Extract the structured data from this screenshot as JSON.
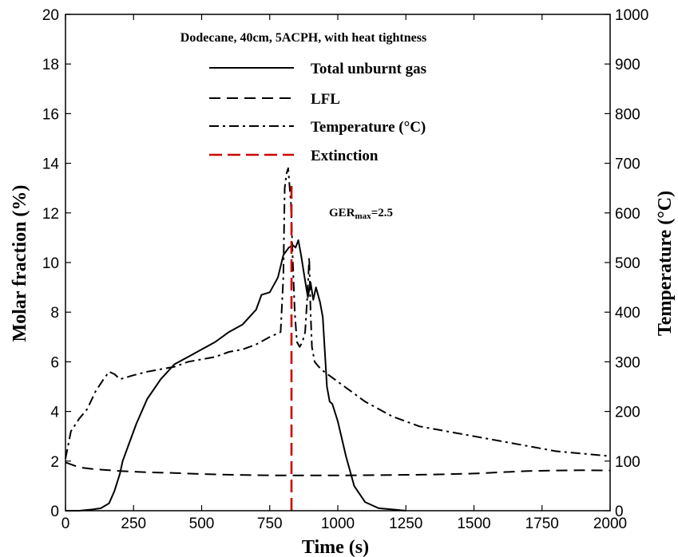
{
  "chart_data": {
    "type": "line",
    "title": "Dodecane, 40cm, 5ACPH, with heat tightness",
    "xlabel": "Time (s)",
    "ylabel": "Molar fraction (%)",
    "y2label": "Temperature (°C)",
    "xlim": [
      0,
      2000
    ],
    "ylim": [
      0,
      20
    ],
    "y2lim": [
      0,
      1000
    ],
    "xticks": [
      "0",
      "250",
      "500",
      "750",
      "1000",
      "1250",
      "1500",
      "1750",
      "2000"
    ],
    "yticks": [
      "0",
      "2",
      "4",
      "6",
      "8",
      "10",
      "12",
      "14",
      "16",
      "18",
      "20"
    ],
    "y2ticks": [
      "0",
      "100",
      "200",
      "300",
      "400",
      "500",
      "600",
      "700",
      "800",
      "900",
      "1000"
    ],
    "grid": false,
    "legend_position": "top-center",
    "annotation": {
      "base": "GER",
      "sub": "max",
      "rest": "=2.5",
      "x": 870,
      "y": 12
    },
    "series": [
      {
        "name": "Total unburnt gas",
        "axis": "left",
        "style": "solid",
        "color": "#000000",
        "x": [
          0,
          50,
          100,
          130,
          160,
          180,
          200,
          210,
          230,
          260,
          300,
          350,
          400,
          450,
          500,
          550,
          600,
          650,
          700,
          720,
          750,
          780,
          800,
          820,
          835,
          845,
          855,
          865,
          875,
          890,
          900,
          910,
          920,
          935,
          945,
          960,
          970,
          980,
          1000,
          1030,
          1060,
          1100,
          1150,
          1200,
          1250
        ],
        "y": [
          0,
          0,
          0.05,
          0.1,
          0.3,
          0.8,
          1.5,
          2.0,
          2.6,
          3.5,
          4.5,
          5.3,
          5.9,
          6.2,
          6.5,
          6.8,
          7.2,
          7.5,
          8.1,
          8.7,
          8.8,
          9.4,
          10.3,
          10.6,
          10.7,
          10.6,
          10.9,
          10.3,
          9.6,
          8.6,
          9.2,
          8.5,
          9.0,
          8.4,
          7.8,
          5.0,
          4.4,
          4.3,
          3.6,
          2.2,
          1.0,
          0.35,
          0.1,
          0.05,
          0
        ]
      },
      {
        "name": "LFL",
        "axis": "left",
        "style": "dashed",
        "color": "#000000",
        "x": [
          0,
          50,
          100,
          200,
          300,
          400,
          500,
          600,
          700,
          800,
          900,
          1000,
          1100,
          1200,
          1300,
          1400,
          1500,
          1600,
          1700,
          1800,
          1900,
          2000
        ],
        "y": [
          1.95,
          1.75,
          1.68,
          1.6,
          1.55,
          1.52,
          1.48,
          1.45,
          1.43,
          1.42,
          1.42,
          1.42,
          1.43,
          1.44,
          1.45,
          1.47,
          1.5,
          1.55,
          1.6,
          1.62,
          1.63,
          1.62
        ]
      },
      {
        "name": "Temperature (°C)",
        "axis": "right",
        "style": "dashdot",
        "color": "#000000",
        "x": [
          0,
          20,
          50,
          80,
          110,
          140,
          160,
          180,
          200,
          250,
          300,
          350,
          400,
          450,
          500,
          550,
          600,
          650,
          700,
          750,
          790,
          800,
          805,
          812,
          818,
          822,
          828,
          835,
          842,
          850,
          860,
          870,
          880,
          890,
          895,
          900,
          905,
          915,
          930,
          950,
          1000,
          1100,
          1200,
          1300,
          1400,
          1500,
          1600,
          1700,
          1800,
          1900,
          2000
        ],
        "y": [
          105,
          160,
          185,
          205,
          240,
          265,
          280,
          275,
          265,
          273,
          280,
          285,
          290,
          300,
          305,
          310,
          320,
          325,
          335,
          350,
          360,
          470,
          650,
          680,
          690,
          660,
          620,
          500,
          400,
          340,
          330,
          340,
          360,
          450,
          510,
          400,
          330,
          300,
          290,
          280,
          260,
          220,
          190,
          170,
          160,
          150,
          140,
          130,
          120,
          115,
          110
        ]
      },
      {
        "name": "Extinction",
        "axis": "left",
        "style": "longdash",
        "color": "#cc0000",
        "x": [
          830,
          830
        ],
        "y": [
          0,
          13.2
        ]
      }
    ]
  }
}
